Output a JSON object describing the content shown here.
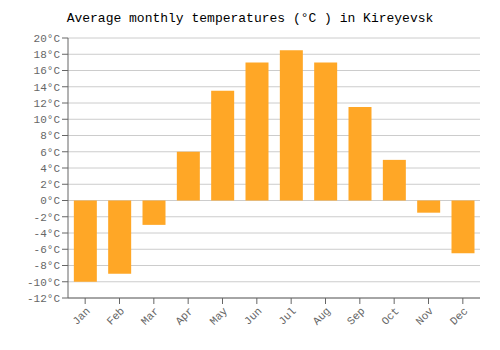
{
  "chart_data": {
    "type": "bar",
    "title": "Average monthly temperatures (°C ) in Kireyevsk",
    "categories": [
      "Jan",
      "Feb",
      "Mar",
      "Apr",
      "May",
      "Jun",
      "Jul",
      "Aug",
      "Sep",
      "Oct",
      "Nov",
      "Dec"
    ],
    "values": [
      -10,
      -9,
      -3,
      6,
      13.5,
      17,
      18.5,
      17,
      11.5,
      5,
      -1.5,
      -6.5
    ],
    "color": "#FFA726",
    "ylim": [
      -12,
      20
    ],
    "yticks": [
      {
        "value": -12,
        "label": "-12°C"
      },
      {
        "value": -10,
        "label": "-10°C"
      },
      {
        "value": -8,
        "label": "-8°C"
      },
      {
        "value": -6,
        "label": "-6°C"
      },
      {
        "value": -4,
        "label": "-4°C"
      },
      {
        "value": -2,
        "label": "-2°C"
      },
      {
        "value": 0,
        "label": "0°C"
      },
      {
        "value": 2,
        "label": "2°C"
      },
      {
        "value": 4,
        "label": "4°C"
      },
      {
        "value": 6,
        "label": "6°C"
      },
      {
        "value": 8,
        "label": "8°C"
      },
      {
        "value": 10,
        "label": "10°C"
      },
      {
        "value": 12,
        "label": "12°C"
      },
      {
        "value": 14,
        "label": "14°C"
      },
      {
        "value": 16,
        "label": "16°C"
      },
      {
        "value": 18,
        "label": "18°C"
      },
      {
        "value": 20,
        "label": "20°C"
      }
    ],
    "grid": true
  }
}
